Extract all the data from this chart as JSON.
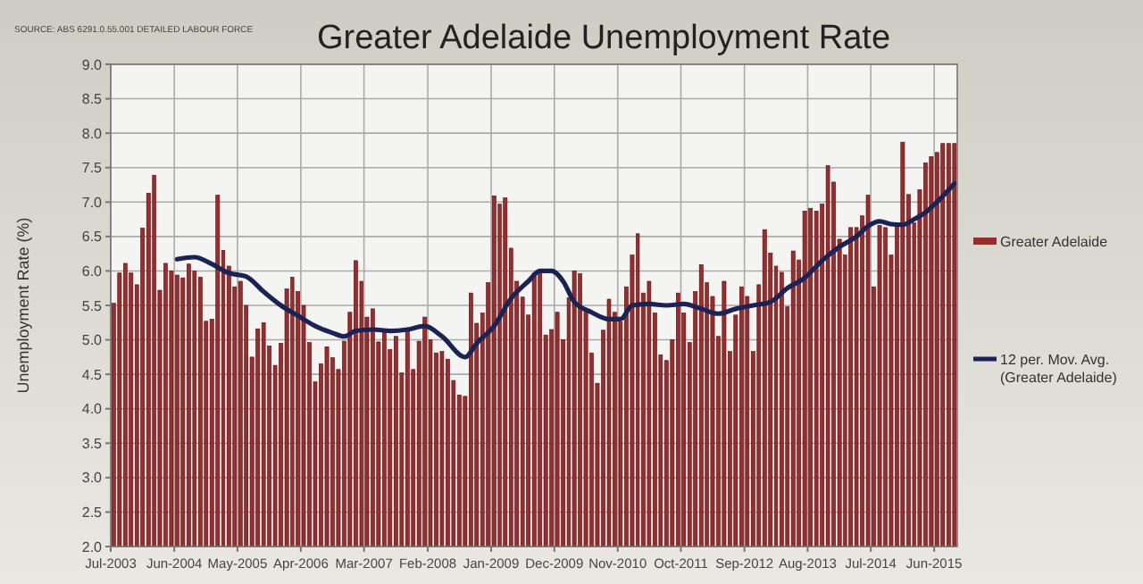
{
  "chart_data": {
    "type": "bar",
    "title": "Greater Adelaide Unemployment Rate",
    "ylabel": "Unemployment Rate (%)",
    "annotations": [
      "SOURCE: ABS 6291.0.55.001 DETAILED LABOUR FORCE"
    ],
    "x": [
      "2003-07",
      "2003-08",
      "2003-09",
      "2003-10",
      "2003-11",
      "2003-12",
      "2004-01",
      "2004-02",
      "2004-03",
      "2004-04",
      "2004-05",
      "2004-06",
      "2004-07",
      "2004-08",
      "2004-09",
      "2004-10",
      "2004-11",
      "2004-12",
      "2005-01",
      "2005-02",
      "2005-03",
      "2005-04",
      "2005-05",
      "2005-06",
      "2005-07",
      "2005-08",
      "2005-09",
      "2005-10",
      "2005-11",
      "2005-12",
      "2006-01",
      "2006-02",
      "2006-03",
      "2006-04",
      "2006-05",
      "2006-06",
      "2006-07",
      "2006-08",
      "2006-09",
      "2006-10",
      "2006-11",
      "2006-12",
      "2007-01",
      "2007-02",
      "2007-03",
      "2007-04",
      "2007-05",
      "2007-06",
      "2007-07",
      "2007-08",
      "2007-09",
      "2007-10",
      "2007-11",
      "2007-12",
      "2008-01",
      "2008-02",
      "2008-03",
      "2008-04",
      "2008-05",
      "2008-06",
      "2008-07",
      "2008-08",
      "2008-09",
      "2008-10",
      "2008-11",
      "2008-12",
      "2009-01",
      "2009-02",
      "2009-03",
      "2009-04",
      "2009-05",
      "2009-06",
      "2009-07",
      "2009-08",
      "2009-09",
      "2009-10",
      "2009-11",
      "2009-12",
      "2010-01",
      "2010-02",
      "2010-03",
      "2010-04",
      "2010-05",
      "2010-06",
      "2010-07",
      "2010-08",
      "2010-09",
      "2010-10",
      "2010-11",
      "2010-12",
      "2011-01",
      "2011-02",
      "2011-03",
      "2011-04",
      "2011-05",
      "2011-06",
      "2011-07",
      "2011-08",
      "2011-09",
      "2011-10",
      "2011-11",
      "2011-12",
      "2012-01",
      "2012-02",
      "2012-03",
      "2012-04",
      "2012-05",
      "2012-06",
      "2012-07",
      "2012-08",
      "2012-09",
      "2012-10",
      "2012-11",
      "2012-12",
      "2013-01",
      "2013-02",
      "2013-03",
      "2013-04",
      "2013-05",
      "2013-06",
      "2013-07",
      "2013-08",
      "2013-09",
      "2013-10",
      "2013-11",
      "2013-12",
      "2014-01",
      "2014-02",
      "2014-03",
      "2014-04",
      "2014-05",
      "2014-06",
      "2014-07",
      "2014-08",
      "2014-09",
      "2014-10",
      "2014-11",
      "2014-12",
      "2015-01",
      "2015-02",
      "2015-03",
      "2015-04",
      "2015-05",
      "2015-06",
      "2015-07",
      "2015-08",
      "2015-09"
    ],
    "xlim": [
      "2003-07",
      "2015-10"
    ],
    "xticks": [
      {
        "value": "2003-07",
        "label": "Jul-2003"
      },
      {
        "value": "2004-06",
        "label": "Jun-2004"
      },
      {
        "value": "2005-05",
        "label": "May-2005"
      },
      {
        "value": "2006-04",
        "label": "Apr-2006"
      },
      {
        "value": "2007-03",
        "label": "Mar-2007"
      },
      {
        "value": "2008-02",
        "label": "Feb-2008"
      },
      {
        "value": "2009-01",
        "label": "Jan-2009"
      },
      {
        "value": "2009-12",
        "label": "Dec-2009"
      },
      {
        "value": "2010-11",
        "label": "Nov-2010"
      },
      {
        "value": "2011-10",
        "label": "Oct-2011"
      },
      {
        "value": "2012-09",
        "label": "Sep-2012"
      },
      {
        "value": "2013-08",
        "label": "Aug-2013"
      },
      {
        "value": "2014-07",
        "label": "Jul-2014"
      },
      {
        "value": "2015-06",
        "label": "Jun-2015"
      }
    ],
    "ylim": [
      2,
      9
    ],
    "yticks": [
      {
        "value": 2,
        "label": "2.0"
      },
      2.5,
      {
        "value": 3,
        "label": "3.0"
      },
      3.5,
      {
        "value": 4,
        "label": "4.0"
      },
      4.5,
      {
        "value": 5,
        "label": "5.0"
      },
      5.5,
      {
        "value": 6,
        "label": "6.0"
      },
      6.5,
      {
        "value": 7,
        "label": "7.0"
      },
      7.5,
      {
        "value": 8,
        "label": "8.0"
      },
      8.5,
      {
        "value": 9,
        "label": "9.0"
      }
    ],
    "grid": true,
    "legend": "right",
    "series": [
      {
        "name": "Greater Adelaide",
        "color": "#9e2a2b",
        "values": [
          5.53,
          5.97,
          6.11,
          5.97,
          5.8,
          6.62,
          7.13,
          7.39,
          5.72,
          6.11,
          6.0,
          5.94,
          5.9,
          6.1,
          6.0,
          5.91,
          5.27,
          5.3,
          7.1,
          6.3,
          6.07,
          5.77,
          5.85,
          5.5,
          4.75,
          5.16,
          5.25,
          4.91,
          4.63,
          4.95,
          5.74,
          5.91,
          5.7,
          5.5,
          4.96,
          4.39,
          4.65,
          4.9,
          4.74,
          4.57,
          4.98,
          5.4,
          6.15,
          5.85,
          5.33,
          5.45,
          4.97,
          5.13,
          4.86,
          5.05,
          4.52,
          5.16,
          4.57,
          4.98,
          5.33,
          5.0,
          4.81,
          4.83,
          4.72,
          4.41,
          4.2,
          4.18,
          5.68,
          5.24,
          5.39,
          5.83,
          7.09,
          6.97,
          7.06,
          6.33,
          5.85,
          5.62,
          5.36,
          5.97,
          6.0,
          5.07,
          5.15,
          5.4,
          5.0,
          5.61,
          6.0,
          5.96,
          5.4,
          4.81,
          4.37,
          5.14,
          5.59,
          5.4,
          5.26,
          5.77,
          6.23,
          6.54,
          5.68,
          5.85,
          5.39,
          4.78,
          4.7,
          5.0,
          5.68,
          5.39,
          4.96,
          5.7,
          6.09,
          5.83,
          5.63,
          5.05,
          5.85,
          4.83,
          5.36,
          5.77,
          5.63,
          4.83,
          5.8,
          6.6,
          6.26,
          6.07,
          5.98,
          5.48,
          6.29,
          6.16,
          6.87,
          6.91,
          6.87,
          6.97,
          7.53,
          7.29,
          6.46,
          6.23,
          6.63,
          6.63,
          6.8,
          7.1,
          5.77,
          6.66,
          6.63,
          6.23,
          6.65,
          7.87,
          7.11,
          6.7,
          7.18,
          7.57,
          7.66,
          7.72,
          7.85,
          7.85,
          7.85
        ]
      },
      {
        "name": "12 per. Mov. Avg. (Greater Adelaide)",
        "type": "line",
        "color": "#1b2254",
        "x": [
          "2004-06",
          "2004-09",
          "2004-12",
          "2005-03",
          "2005-06",
          "2005-09",
          "2005-12",
          "2006-03",
          "2006-06",
          "2006-09",
          "2006-11",
          "2007-01",
          "2007-04",
          "2007-07",
          "2007-10",
          "2008-01",
          "2008-04",
          "2008-08",
          "2008-10",
          "2009-01",
          "2009-04",
          "2009-07",
          "2009-09",
          "2009-11",
          "2010-01",
          "2010-03",
          "2010-06",
          "2010-09",
          "2010-11",
          "2011-01",
          "2011-04",
          "2011-07",
          "2011-10",
          "2012-01",
          "2012-04",
          "2012-07",
          "2012-10",
          "2013-01",
          "2013-04",
          "2013-07",
          "2013-10",
          "2014-01",
          "2014-04",
          "2014-06",
          "2014-08",
          "2014-10",
          "2014-12",
          "2015-02",
          "2015-04",
          "2015-06",
          "2015-09"
        ],
        "values": [
          6.17,
          6.2,
          6.1,
          5.97,
          5.92,
          5.7,
          5.5,
          5.35,
          5.2,
          5.1,
          5.05,
          5.13,
          5.15,
          5.13,
          5.15,
          5.2,
          5.05,
          4.75,
          4.95,
          5.2,
          5.6,
          5.85,
          6.0,
          6.0,
          5.85,
          5.55,
          5.4,
          5.3,
          5.3,
          5.5,
          5.52,
          5.5,
          5.52,
          5.45,
          5.38,
          5.45,
          5.5,
          5.55,
          5.75,
          5.9,
          6.15,
          6.35,
          6.5,
          6.65,
          6.72,
          6.68,
          6.67,
          6.75,
          6.85,
          7.0,
          7.27
        ]
      }
    ]
  }
}
